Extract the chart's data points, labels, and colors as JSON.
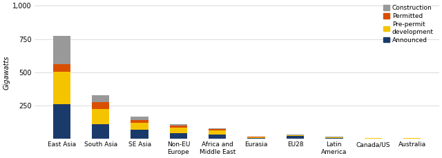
{
  "categories": [
    "East Asia",
    "South Asia",
    "SE Asia",
    "Non-EU\nEurope",
    "Africa and\nMiddle East",
    "Eurasia",
    "EU28",
    "Latin\nAmerica",
    "Canada/US",
    "Australia"
  ],
  "announced": [
    260,
    110,
    70,
    45,
    35,
    8,
    20,
    5,
    3,
    3
  ],
  "pre_permit_dev": [
    245,
    115,
    50,
    40,
    30,
    5,
    5,
    5,
    2,
    2
  ],
  "permitted": [
    55,
    50,
    20,
    15,
    8,
    3,
    3,
    3,
    1,
    1
  ],
  "construction": [
    215,
    55,
    25,
    10,
    5,
    3,
    5,
    3,
    1,
    1
  ],
  "colors": {
    "announced": "#1a3a6b",
    "pre_permit_dev": "#f5c400",
    "permitted": "#d94f00",
    "construction": "#999999"
  },
  "ylabel": "Gigawatts",
  "ylim": [
    0,
    1000
  ],
  "yticks": [
    0,
    250,
    500,
    750,
    1000
  ],
  "ytick_labels": [
    "",
    "250",
    "500",
    "750",
    "1,000"
  ],
  "background_color": "#ffffff",
  "grid_color": "#cccccc"
}
